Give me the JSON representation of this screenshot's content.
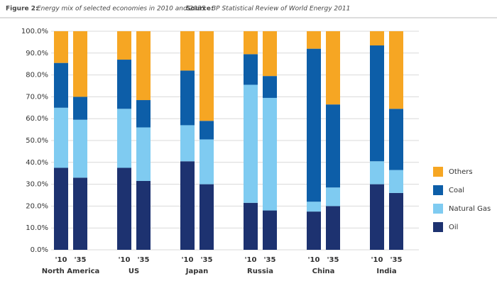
{
  "chart_data": {
    "type": "stacked_bar",
    "title_label": "Figure 2:",
    "title": "Energy mix of selected economies in 2010 and 2035",
    "source_label": "Source:",
    "source": "BP Statistical Review of World Energy 2011",
    "groups": [
      "North America",
      "US",
      "Japan",
      "Russia",
      "China",
      "India"
    ],
    "categories": [
      "'10",
      "'35",
      "'10",
      "'35",
      "'10",
      "'35",
      "'10",
      "'35",
      "'10",
      "'35",
      "'10",
      "'35"
    ],
    "series": [
      {
        "name": "Oil",
        "color": "#1d3270",
        "values": [
          37.5,
          33,
          37.5,
          31.5,
          40.5,
          30,
          21.5,
          18,
          17.5,
          20,
          30,
          26
        ]
      },
      {
        "name": "Natural Gas",
        "color": "#7fcbf1",
        "values": [
          27.5,
          26.5,
          27,
          24.5,
          16.5,
          20.5,
          54,
          51.5,
          4.5,
          8.5,
          10.5,
          10.5
        ]
      },
      {
        "name": "Coal",
        "color": "#0d5ea8",
        "values": [
          20.5,
          10.5,
          22.5,
          12.5,
          25,
          8.5,
          14,
          10,
          70,
          38,
          53,
          28
        ]
      },
      {
        "name": "Others",
        "color": "#f6a623",
        "values": [
          14.5,
          30,
          13,
          31.5,
          18,
          41,
          10.5,
          20.5,
          8,
          33.5,
          6.5,
          35.5
        ]
      }
    ],
    "ylim": [
      0,
      100
    ],
    "yticks": [
      {
        "value": 0,
        "label": "0.0%"
      },
      {
        "value": 10,
        "label": "10.0%"
      },
      {
        "value": 20,
        "label": "20.0%"
      },
      {
        "value": 30,
        "label": "30.0%"
      },
      {
        "value": 40,
        "label": "40.0%"
      },
      {
        "value": 50,
        "label": "50.0%"
      },
      {
        "value": 60,
        "label": "60.0%"
      },
      {
        "value": 70,
        "label": "70.0%"
      },
      {
        "value": 80,
        "label": "80.0%"
      },
      {
        "value": 90,
        "label": "90.0%"
      },
      {
        "value": 100,
        "label": "100.0%"
      }
    ],
    "grid": true,
    "legend": "right"
  }
}
